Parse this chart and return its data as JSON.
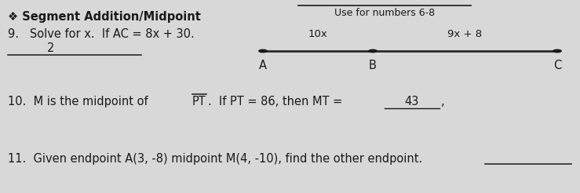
{
  "background_color": "#d8d8d8",
  "title_bullet": "❖ Segment Addition/Midpoint",
  "use_for": "Use for numbers 6-8",
  "q9_label": "9.   Solve for x.  If AC = 8x + 30.",
  "q9_answer": "2",
  "segment_labels": [
    "10x",
    "9x + 8"
  ],
  "segment_points": [
    "A",
    "B",
    "C"
  ],
  "q10_answer": "43",
  "q11_text": "11.  Given endpoint A(3, -8) midpoint M(4, -10), find the other endpoint.",
  "font_size_title": 10.5,
  "font_size_body": 10.5,
  "font_size_small": 9,
  "text_color": "#1a1a1a",
  "line_color": "#2a2a2a",
  "dot_color": "#1a1a1a"
}
